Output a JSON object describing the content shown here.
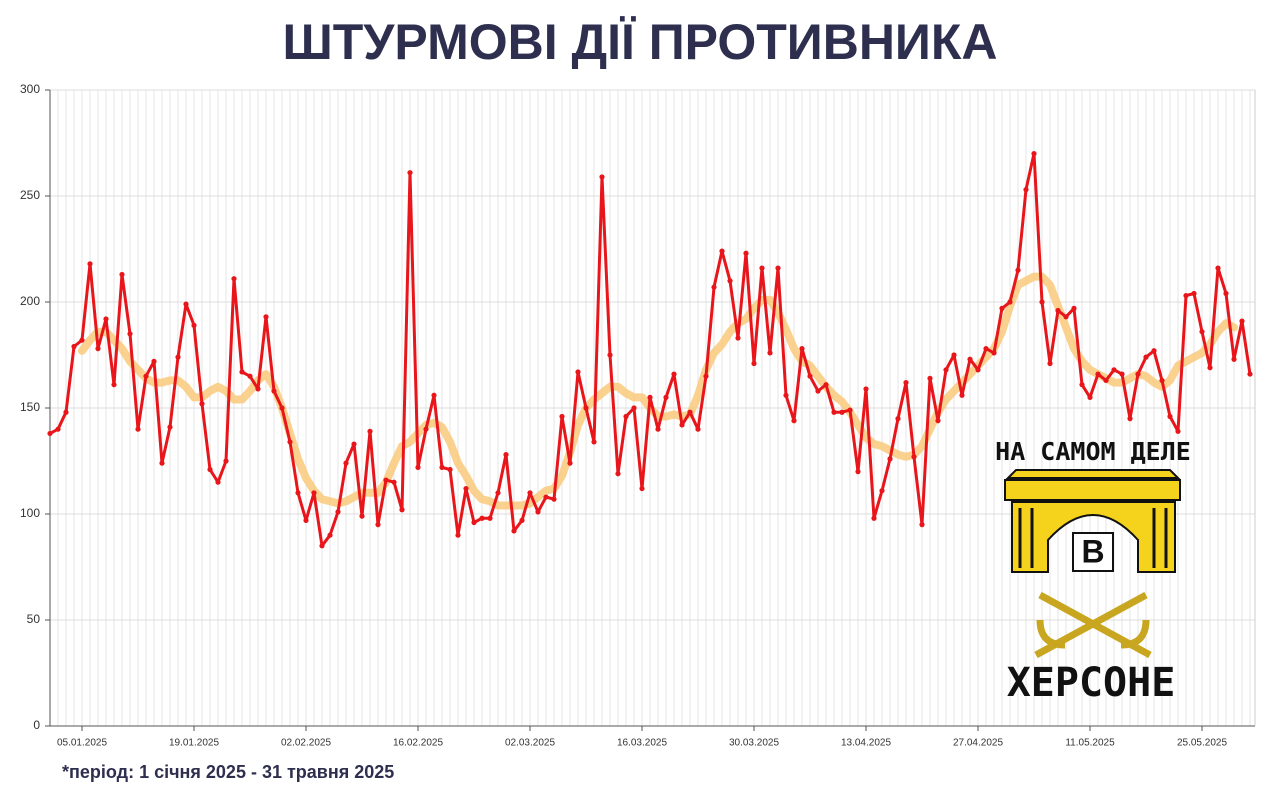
{
  "chart_data": {
    "type": "line",
    "title": "ШТУРМОВІ ДІЇ ПРОТИВНИКА",
    "footnote": "*період: 1 січня 2025 - 31 травня 2025",
    "categories": [
      null,
      null,
      null,
      null,
      "05.01.2025",
      null,
      null,
      null,
      null,
      null,
      null,
      null,
      null,
      null,
      null,
      null,
      null,
      null,
      "19.01.2025",
      null,
      null,
      null,
      null,
      null,
      null,
      null,
      null,
      null,
      null,
      null,
      null,
      null,
      "02.02.2025",
      null,
      null,
      null,
      null,
      null,
      null,
      null,
      null,
      null,
      null,
      null,
      null,
      null,
      "16.02.2025",
      null,
      null,
      null,
      null,
      null,
      null,
      null,
      null,
      null,
      null,
      null,
      null,
      null,
      "02.03.2025",
      null,
      null,
      null,
      null,
      null,
      null,
      null,
      null,
      null,
      null,
      null,
      null,
      null,
      "16.03.2025",
      null,
      null,
      null,
      null,
      null,
      null,
      null,
      null,
      null,
      null,
      null,
      null,
      null,
      "30.03.2025",
      null,
      null,
      null,
      null,
      null,
      null,
      null,
      null,
      null,
      null,
      null,
      null,
      null,
      "13.04.2025",
      null,
      null,
      null,
      null,
      null,
      null,
      null,
      null,
      null,
      null,
      null,
      null,
      null,
      "27.04.2025",
      null,
      null,
      null,
      null,
      null,
      null,
      null,
      null,
      null,
      null,
      null,
      null,
      null,
      "11.05.2025",
      null,
      null,
      null,
      null,
      null,
      null,
      null,
      null,
      null,
      null,
      null,
      null,
      null,
      "25.05.2025",
      null,
      null,
      null,
      null,
      null,
      null
    ],
    "series": [
      {
        "color": "#e8161b",
        "values": [
          138,
          140,
          148,
          179,
          182,
          218,
          178,
          192,
          161,
          213,
          185,
          140,
          165,
          172,
          124,
          141,
          174,
          199,
          189,
          152,
          121,
          115,
          125,
          211,
          167,
          165,
          159,
          193,
          158,
          150,
          134,
          110,
          97,
          110,
          85,
          90,
          101,
          124,
          133,
          99,
          139,
          95,
          116,
          115,
          102,
          261,
          122,
          140,
          156,
          122,
          121,
          90,
          112,
          96,
          98,
          98,
          110,
          128,
          92,
          97,
          110,
          101,
          108,
          107,
          146,
          124,
          167,
          150,
          134,
          259,
          175,
          119,
          146,
          150,
          112,
          155,
          140,
          155,
          166,
          142,
          148,
          140,
          165,
          207,
          224,
          210,
          183,
          223,
          171,
          216,
          176,
          216,
          156,
          144,
          178,
          165,
          158,
          161,
          148,
          148,
          149,
          120,
          159,
          98,
          111,
          126,
          145,
          162,
          127,
          95,
          164,
          144,
          168,
          175,
          156,
          173,
          168,
          178,
          176,
          197,
          200,
          215,
          253,
          270,
          200,
          171,
          196,
          193,
          197,
          161,
          155,
          166,
          163,
          168,
          166,
          145,
          166,
          174,
          177,
          163,
          146,
          139,
          203,
          204,
          186,
          169,
          216,
          204,
          173,
          191,
          166
        ]
      },
      {
        "color": "#f9c97a",
        "values": [
          null,
          null,
          null,
          null,
          177,
          182,
          186,
          186,
          182,
          178,
          172,
          168,
          164,
          162,
          162,
          163,
          163,
          160,
          155,
          155,
          158,
          160,
          158,
          154,
          154,
          158,
          163,
          166,
          160,
          150,
          138,
          126,
          117,
          111,
          107,
          106,
          105,
          106,
          108,
          110,
          110,
          110,
          115,
          124,
          132,
          134,
          138,
          142,
          143,
          141,
          134,
          124,
          118,
          111,
          107,
          106,
          104,
          104,
          104,
          104,
          105,
          108,
          111,
          112,
          118,
          129,
          142,
          150,
          154,
          157,
          160,
          160,
          157,
          155,
          155,
          150,
          146,
          146,
          147,
          146,
          147,
          156,
          168,
          176,
          180,
          186,
          190,
          192,
          197,
          201,
          201,
          195,
          187,
          178,
          172,
          170,
          165,
          160,
          156,
          153,
          148,
          142,
          136,
          133,
          132,
          130,
          128,
          127,
          128,
          132,
          140,
          148,
          154,
          158,
          162,
          166,
          170,
          174,
          178,
          186,
          198,
          208,
          210,
          212,
          212,
          208,
          198,
          188,
          178,
          172,
          168,
          166,
          164,
          162,
          162,
          164,
          166,
          165,
          162,
          160,
          163,
          170,
          172,
          174,
          176,
          180,
          186,
          190,
          188,
          null,
          null
        ]
      }
    ],
    "ylim": [
      0,
      300
    ],
    "yticks": [
      0,
      50,
      100,
      150,
      200,
      250,
      300
    ],
    "grid": true,
    "logo": {
      "top": "НА САМОМ ДЕЛЕ",
      "letter": "В",
      "bottom": "ХЕРСОНЕ"
    }
  }
}
